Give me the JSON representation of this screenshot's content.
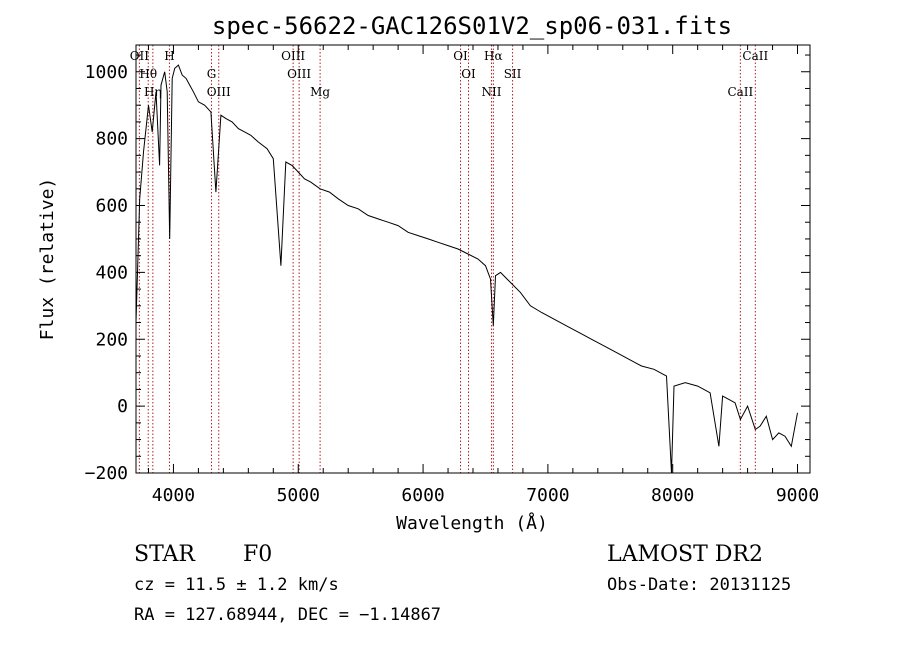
{
  "chart_data": {
    "type": "line",
    "title": "spec-56622-GAC126S01V2_sp06-031.fits",
    "xlabel": "Wavelength (Å)",
    "ylabel": "Flux (relative)",
    "xlim": [
      3700,
      9100
    ],
    "ylim": [
      -200,
      1080
    ],
    "x_ticks": [
      4000,
      5000,
      6000,
      7000,
      8000,
      9000
    ],
    "y_ticks": [
      -200,
      0,
      200,
      400,
      600,
      800,
      1000
    ],
    "grid": false,
    "series": [
      {
        "x": [
          3700,
          3730,
          3760,
          3800,
          3830,
          3860,
          3889,
          3900,
          3930,
          3950,
          3970,
          3990,
          4010,
          4040,
          4070,
          4101,
          4130,
          4160,
          4200,
          4250,
          4300,
          4340,
          4380,
          4420,
          4470,
          4520,
          4570,
          4620,
          4680,
          4750,
          4800,
          4861,
          4900,
          4950,
          5000,
          5050,
          5100,
          5175,
          5250,
          5320,
          5400,
          5480,
          5560,
          5640,
          5720,
          5800,
          5880,
          5960,
          6040,
          6120,
          6200,
          6280,
          6360,
          6440,
          6500,
          6540,
          6563,
          6580,
          6620,
          6700,
          6780,
          6860,
          6950,
          7050,
          7150,
          7250,
          7350,
          7450,
          7550,
          7650,
          7750,
          7850,
          7950,
          7990,
          8010,
          8100,
          8200,
          8300,
          8370,
          8400,
          8450,
          8500,
          8542,
          8600,
          8662,
          8700,
          8750,
          8800,
          8850,
          8900,
          8950,
          9000
        ],
        "y": [
          250,
          620,
          760,
          900,
          820,
          940,
          720,
          960,
          1000,
          940,
          500,
          980,
          1010,
          1020,
          990,
          980,
          960,
          940,
          910,
          900,
          880,
          640,
          870,
          860,
          850,
          830,
          820,
          810,
          790,
          770,
          740,
          420,
          730,
          720,
          700,
          680,
          670,
          650,
          640,
          620,
          600,
          590,
          570,
          560,
          550,
          540,
          520,
          510,
          500,
          490,
          480,
          470,
          455,
          440,
          420,
          380,
          240,
          390,
          400,
          370,
          340,
          300,
          280,
          260,
          240,
          220,
          200,
          180,
          160,
          140,
          120,
          110,
          90,
          -200,
          60,
          70,
          60,
          40,
          -120,
          30,
          20,
          10,
          -40,
          0,
          -70,
          -60,
          -30,
          -100,
          -80,
          -90,
          -120,
          -20
        ]
      }
    ],
    "line_markers": [
      {
        "label": "OII",
        "x": 3727
      },
      {
        "label": "Hθ",
        "x": 3798
      },
      {
        "label": "Hη",
        "x": 3835
      },
      {
        "label": "H",
        "x": 3968
      },
      {
        "label": "G",
        "x": 4305
      },
      {
        "label": "OIII",
        "x": 4363
      },
      {
        "label": "OIII",
        "x": 4959
      },
      {
        "label": "OIII",
        "x": 5007
      },
      {
        "label": "Mg",
        "x": 5175
      },
      {
        "label": "OI",
        "x": 6300
      },
      {
        "label": "OI",
        "x": 6364
      },
      {
        "label": "NII",
        "x": 6548
      },
      {
        "label": "Hα",
        "x": 6563
      },
      {
        "label": "SII",
        "x": 6717
      },
      {
        "label": "CaII",
        "x": 8542
      },
      {
        "label": "CaII",
        "x": 8662
      }
    ]
  },
  "info": {
    "object_class": "STAR",
    "subclass": "F0",
    "cz": "cz = 11.5 ± 1.2 km/s",
    "coords": "RA = 127.68944, DEC =  −1.14867",
    "survey": "LAMOST DR2",
    "obs_date": "Obs-Date: 20131125"
  }
}
